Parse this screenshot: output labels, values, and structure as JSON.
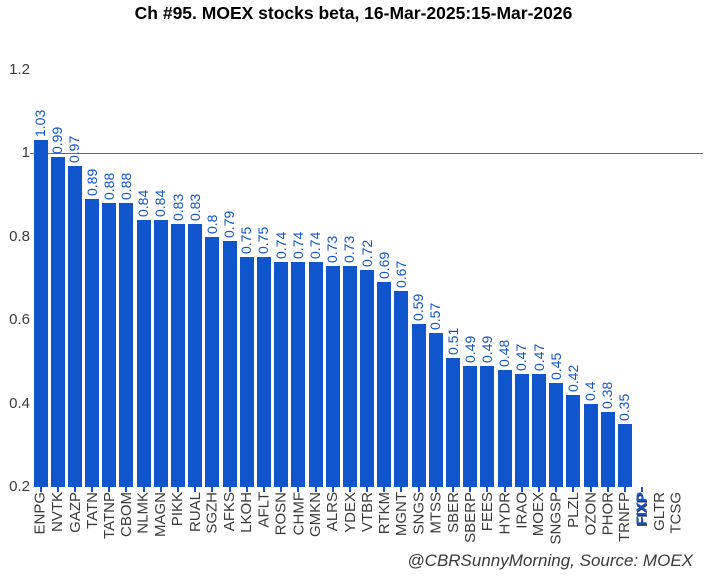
{
  "title": "Ch #95. MOEX stocks beta, 16-Mar-2025:15-Mar-2026",
  "footer": "@CBRSunnyMorning, Source: MOEX",
  "colors": {
    "bar": "#1155cc",
    "value_label": "#1155cc",
    "reference_line": "#cc4437",
    "axis_text": "#3b3b3b",
    "highlight_label": "#1155cc"
  },
  "chart_data": {
    "type": "bar",
    "title": "Ch #95. MOEX stocks beta, 16-Mar-2025:15-Mar-2026",
    "xlabel": "",
    "ylabel": "",
    "ylim": [
      0.2,
      1.2
    ],
    "ytick_values": [
      0.2,
      0.4,
      0.6,
      0.8,
      1,
      1.2
    ],
    "ytick_labels": [
      "0.2",
      "0.4",
      "0.6",
      "0.8",
      "1",
      "1.2"
    ],
    "grid": false,
    "legend": false,
    "reference_line": {
      "y": 1,
      "color": "#cc4437"
    },
    "categories": [
      "ENPG",
      "NVTK",
      "GAZP",
      "TATN",
      "TATNP",
      "CBOM",
      "NLMK",
      "MAGN",
      "PIKK",
      "RUAL",
      "SGZH",
      "AFKS",
      "LKOH",
      "AFLT",
      "ROSN",
      "CHMF",
      "GMKN",
      "ALRS",
      "YDEX",
      "VTBR",
      "RTKM",
      "MGNT",
      "SNGS",
      "MTSS",
      "SBER",
      "SBERP",
      "FEES",
      "HYDR",
      "IRAO",
      "MOEX",
      "SNGSP",
      "PLZL",
      "OZON",
      "PHOR",
      "TRNFP",
      "FIXP",
      "GLTR",
      "TCSG"
    ],
    "values": [
      1.03,
      0.99,
      0.97,
      0.89,
      0.88,
      0.88,
      0.84,
      0.84,
      0.83,
      0.83,
      0.8,
      0.79,
      0.75,
      0.75,
      0.74,
      0.74,
      0.74,
      0.73,
      0.73,
      0.72,
      0.69,
      0.67,
      0.59,
      0.57,
      0.51,
      0.49,
      0.49,
      0.48,
      0.47,
      0.47,
      0.45,
      0.42,
      0.4,
      0.38,
      0.35,
      null,
      null,
      null
    ],
    "value_labels": [
      "1.03",
      "0.99",
      "0.97",
      "0.89",
      "0.88",
      "0.88",
      "0.84",
      "0.84",
      "0.83",
      "0.83",
      "0.8",
      "0.79",
      "0.75",
      "0.75",
      "0.74",
      "0.74",
      "0.74",
      "0.73",
      "0.73",
      "0.72",
      "0.69",
      "0.67",
      "0.59",
      "0.57",
      "0.51",
      "0.49",
      "0.49",
      "0.48",
      "0.47",
      "0.47",
      "0.45",
      "0.42",
      "0.4",
      "0.38",
      "0.35",
      "",
      "",
      ""
    ],
    "axis_ticks": [
      true,
      true,
      true,
      true,
      true,
      true,
      true,
      true,
      true,
      true,
      true,
      true,
      true,
      true,
      true,
      true,
      true,
      true,
      true,
      true,
      true,
      true,
      true,
      true,
      true,
      true,
      true,
      true,
      true,
      true,
      true,
      true,
      true,
      true,
      true,
      true,
      false,
      false
    ],
    "highlight_category": "FIXP"
  }
}
